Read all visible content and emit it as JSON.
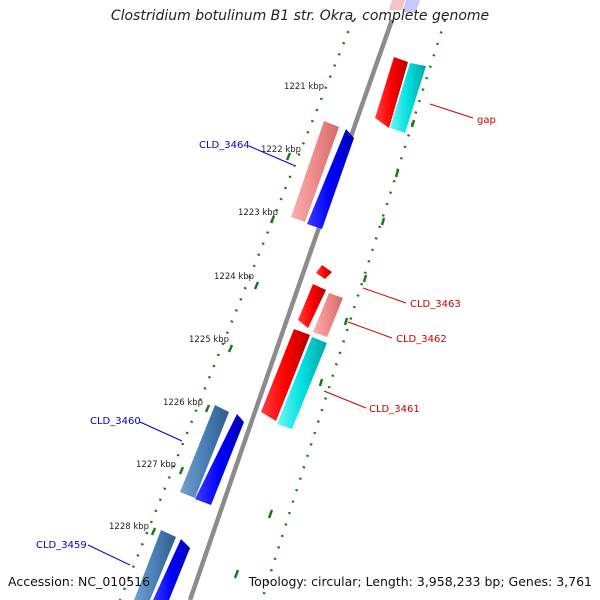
{
  "title": "Clostridium botulinum B1 str. Okra, complete genome",
  "footer": {
    "accession": "Accession: NC_010516",
    "topology": "Topology: circular; Length: 3,958,233 bp; Genes: 3,761"
  },
  "ticks": [
    "1221 kbp",
    "1222 kbp",
    "1223 kbp",
    "1224 kbp",
    "1225 kbp",
    "1226 kbp",
    "1227 kbp",
    "1228 kbp"
  ],
  "gene_labels_left": [
    "CLD_3464",
    "CLD_3460",
    "CLD_3459"
  ],
  "gene_labels_right": [
    "gap",
    "CLD_3463",
    "CLD_3462",
    "CLD_3461"
  ],
  "colors": {
    "blue_label": "#0000cc",
    "red_label": "#cc0000",
    "backbone": "#8c8c8c",
    "dots": "#1a7a1a"
  }
}
